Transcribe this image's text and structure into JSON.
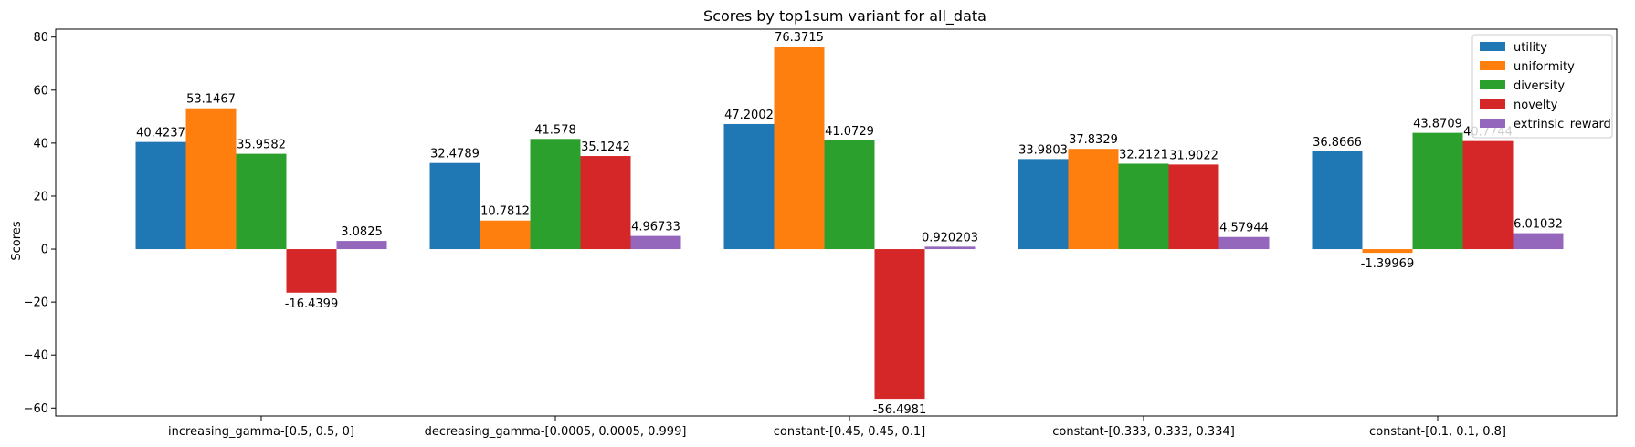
{
  "chart_data": {
    "type": "bar",
    "title": "Scores by top1sum variant for all_data",
    "xlabel": "",
    "ylabel": "Scores",
    "ylim": [
      -63,
      83
    ],
    "yticks": [
      -60,
      -40,
      -20,
      0,
      20,
      40,
      60,
      80
    ],
    "categories": [
      "increasing_gamma-[0.5, 0.5, 0]",
      "decreasing_gamma-[0.0005, 0.0005, 0.999]",
      "constant-[0.45, 0.45, 0.1]",
      "constant-[0.333, 0.333, 0.334]",
      "constant-[0.1, 0.1, 0.8]"
    ],
    "series": [
      {
        "name": "utility",
        "color": "#1f77b4",
        "values": [
          40.4237,
          32.4789,
          47.2002,
          33.9803,
          36.8666
        ]
      },
      {
        "name": "uniformity",
        "color": "#ff7f0e",
        "values": [
          53.1467,
          10.7812,
          76.3715,
          37.8329,
          -1.39969
        ]
      },
      {
        "name": "diversity",
        "color": "#2ca02c",
        "values": [
          35.9582,
          41.578,
          41.0729,
          32.2121,
          43.8709
        ]
      },
      {
        "name": "novelty",
        "color": "#d62728",
        "values": [
          -16.4399,
          35.1242,
          -56.4981,
          31.9022,
          40.7744
        ]
      },
      {
        "name": "extrinsic_reward",
        "color": "#9467bd",
        "values": [
          3.0825,
          4.96733,
          0.920203,
          4.57944,
          6.01032
        ]
      }
    ],
    "legend": "top-right",
    "grid": false
  }
}
